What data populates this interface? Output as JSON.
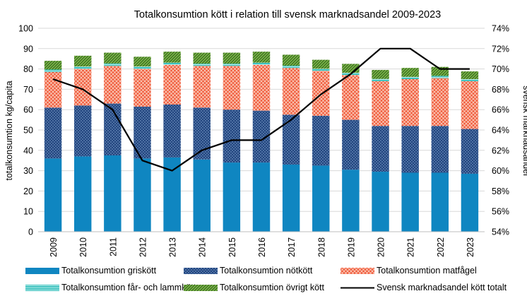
{
  "chart_data": {
    "type": "bar",
    "stacked": true,
    "title": "Totalkonsumtion kött i relation till svensk marknadsandel 2009-2023",
    "ylabel": "totalkonsumtion kg/capita",
    "y2label": "svensk marknadsandel",
    "ylim": [
      0,
      100
    ],
    "yticks": [
      0,
      10,
      20,
      30,
      40,
      50,
      60,
      70,
      80,
      90,
      100
    ],
    "y2lim": [
      54,
      74
    ],
    "y2ticks": [
      "54%",
      "56%",
      "58%",
      "60%",
      "62%",
      "64%",
      "66%",
      "68%",
      "70%",
      "72%",
      "74%"
    ],
    "grid": true,
    "legend_position": "bottom",
    "categories": [
      "2009",
      "2010",
      "2011",
      "2012",
      "2013",
      "2014",
      "2015",
      "2016",
      "2017",
      "2018",
      "2019",
      "2020",
      "2021",
      "2022",
      "2023"
    ],
    "series": [
      {
        "name": "Totalkonsumtion griskött",
        "color": "#0f86c1",
        "pattern": "solid",
        "values": [
          36,
          37,
          37.5,
          36,
          36.5,
          35.5,
          34,
          34,
          33,
          32.5,
          30.5,
          29.5,
          29,
          29,
          28.5
        ]
      },
      {
        "name": "Totalkonsumtion nötkött",
        "color": "#1f3f7a",
        "pattern": "dots",
        "values": [
          25,
          25,
          25.5,
          25.5,
          26,
          25.5,
          26,
          25.5,
          24.5,
          24.5,
          24.5,
          22.5,
          23,
          23,
          22
        ]
      },
      {
        "name": "Totalkonsumtion matfågel",
        "color": "#f05a3a",
        "pattern": "cross",
        "values": [
          17.5,
          18,
          18.5,
          18.5,
          19.5,
          20.5,
          21.5,
          22.5,
          23,
          22,
          22,
          22,
          23,
          23.5,
          23.5
        ]
      },
      {
        "name": "Totalkonsumtion får- och lammkött",
        "color": "#39c1bd",
        "pattern": "lines",
        "values": [
          1.2,
          1.2,
          1.2,
          1.2,
          1.1,
          1.1,
          1.1,
          1.1,
          1.1,
          1.1,
          1.1,
          1.1,
          1.1,
          1.1,
          1.0
        ]
      },
      {
        "name": "Totalkonsumtion övrigt kött",
        "color": "#7ab648",
        "pattern": "diag",
        "values": [
          4.3,
          5.3,
          5.3,
          4.8,
          5.4,
          5.4,
          5.4,
          5.4,
          5.4,
          4.4,
          4.4,
          4.4,
          4.4,
          4.4,
          3.8
        ]
      }
    ],
    "line_series": {
      "name": "Svensk marknadsandel kött totalt",
      "axis": "right",
      "color": "#000000",
      "values": [
        69,
        68,
        66,
        61,
        60,
        62,
        63,
        63,
        65,
        67.5,
        69.5,
        72,
        72,
        70,
        70
      ]
    }
  }
}
